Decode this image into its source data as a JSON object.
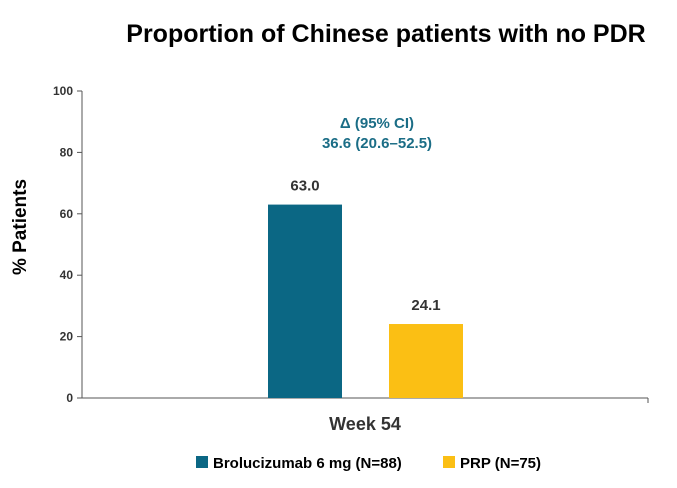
{
  "chart_data": {
    "type": "bar",
    "title": "Proportion of Chinese patients with no PDR",
    "ylabel": "% Patients",
    "xlabel": "",
    "ylim": [
      0,
      100
    ],
    "yticks": [
      0,
      20,
      40,
      60,
      80,
      100
    ],
    "grid": false,
    "categories": [
      "Week 54"
    ],
    "series": [
      {
        "name": "Brolucizumab 6 mg (N=88)",
        "values": [
          63.0
        ],
        "labels": [
          "63.0"
        ],
        "color": "#0b6784"
      },
      {
        "name": "PRP (N=75)",
        "values": [
          24.1
        ],
        "labels": [
          "24.1"
        ],
        "color": "#fbbf14"
      }
    ],
    "annotations": [
      {
        "line1": "Δ (95% CI)",
        "line2": "36.6 (20.6–52.5)",
        "color": "#1b6d86"
      }
    ],
    "legend_position": "bottom"
  }
}
